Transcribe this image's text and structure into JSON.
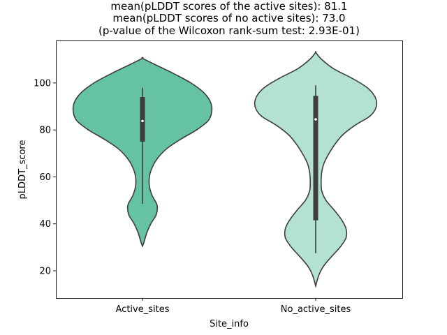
{
  "chart_data": {
    "type": "violin",
    "title_lines": [
      "mean(pLDDT scores of the active sites): 81.1",
      "mean(pLDDT scores of no active sites): 73.0",
      "(p-value of the Wilcoxon rank-sum test: 2.93E-01)"
    ],
    "xlabel": "Site_info",
    "ylabel": "pLDDT_score",
    "ylim": [
      8.4,
      118.1
    ],
    "yticks": [
      20,
      40,
      60,
      80,
      100
    ],
    "categories": [
      "Active_sites",
      "No_active_sites"
    ],
    "edge_color": "#3d3d3d",
    "violins": [
      {
        "name": "Active_sites",
        "color": "#66c2a5",
        "min": 30.5,
        "max": 110.5,
        "whisker_low": 48.5,
        "q1": 75.0,
        "median": 83.8,
        "q3": 94.0,
        "whisker_high": 98.0,
        "density_profile": [
          [
            30.5,
            0
          ],
          [
            32,
            0.02
          ],
          [
            36,
            0.06
          ],
          [
            40,
            0.12
          ],
          [
            44,
            0.2
          ],
          [
            48,
            0.21
          ],
          [
            52,
            0.14
          ],
          [
            56,
            0.1
          ],
          [
            60,
            0.1
          ],
          [
            64,
            0.14
          ],
          [
            68,
            0.22
          ],
          [
            72,
            0.35
          ],
          [
            76,
            0.55
          ],
          [
            80,
            0.78
          ],
          [
            84,
            0.95
          ],
          [
            88,
            1.0
          ],
          [
            92,
            0.98
          ],
          [
            96,
            0.88
          ],
          [
            100,
            0.7
          ],
          [
            104,
            0.45
          ],
          [
            108,
            0.17
          ],
          [
            110.5,
            0
          ]
        ],
        "max_width": 0.8
      },
      {
        "name": "No_active_sites",
        "color": "#b3e2d4",
        "min": 13.5,
        "max": 113.0,
        "whisker_low": 27.5,
        "q1": 41.5,
        "median": 84.5,
        "q3": 94.5,
        "whisker_high": 99.0,
        "density_profile": [
          [
            13.5,
            0
          ],
          [
            18,
            0.05
          ],
          [
            22,
            0.13
          ],
          [
            26,
            0.26
          ],
          [
            30,
            0.4
          ],
          [
            34,
            0.5
          ],
          [
            38,
            0.5
          ],
          [
            42,
            0.42
          ],
          [
            46,
            0.3
          ],
          [
            50,
            0.17
          ],
          [
            54,
            0.1
          ],
          [
            58,
            0.09
          ],
          [
            62,
            0.1
          ],
          [
            66,
            0.14
          ],
          [
            70,
            0.22
          ],
          [
            74,
            0.32
          ],
          [
            78,
            0.45
          ],
          [
            82,
            0.65
          ],
          [
            86,
            0.9
          ],
          [
            90,
            1.0
          ],
          [
            94,
            0.98
          ],
          [
            98,
            0.85
          ],
          [
            102,
            0.6
          ],
          [
            106,
            0.3
          ],
          [
            110,
            0.1
          ],
          [
            113,
            0
          ]
        ],
        "max_width": 0.7
      }
    ]
  }
}
